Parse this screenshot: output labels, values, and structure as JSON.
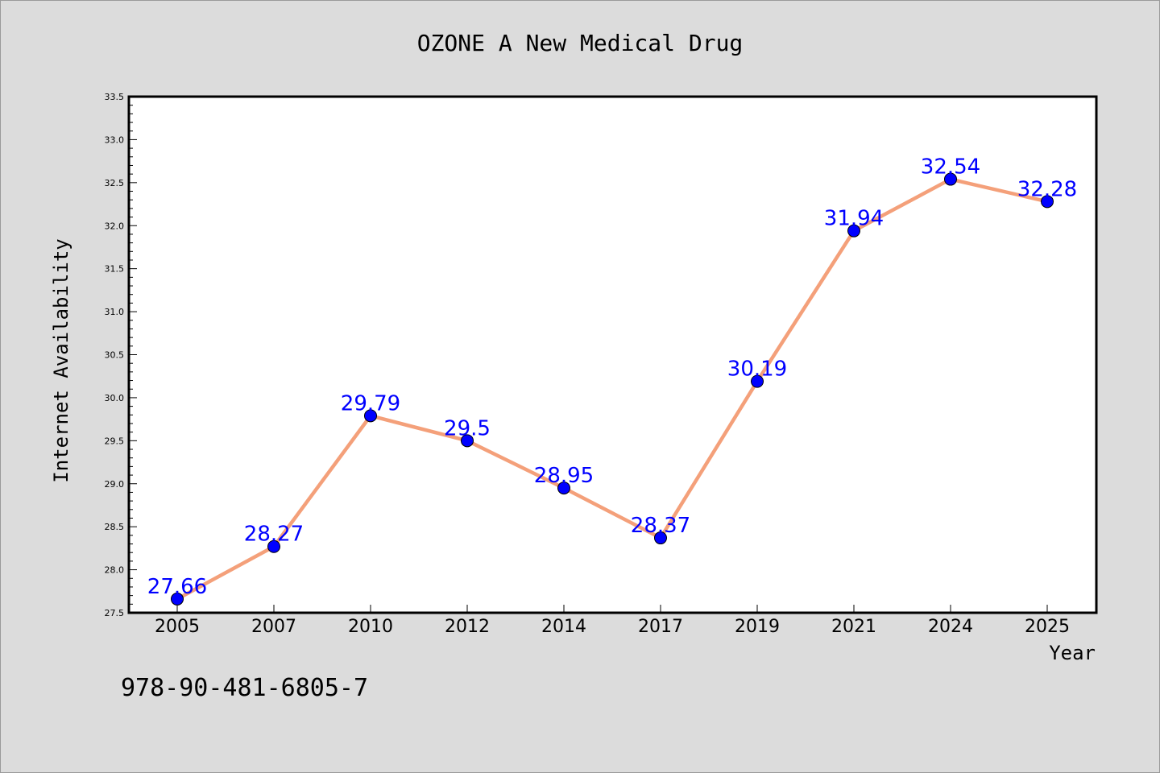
{
  "footer": {
    "isbn": "978-90-481-6805-7"
  },
  "colors": {
    "background": "#dcdcdc",
    "plot_background": "#ffffff",
    "line": "#f4a07a",
    "marker": "#0000ff",
    "data_label": "#0000ff"
  },
  "chart_data": {
    "type": "line",
    "title": "OZONE A New Medical Drug",
    "xlabel": "Year",
    "ylabel": "Internet Availability",
    "categories": [
      "2005",
      "2007",
      "2010",
      "2012",
      "2014",
      "2017",
      "2019",
      "2021",
      "2024",
      "2025"
    ],
    "series": [
      {
        "values": [
          27.66,
          28.27,
          29.79,
          29.5,
          28.95,
          28.37,
          30.19,
          31.94,
          32.54,
          32.28
        ]
      }
    ],
    "data_labels": [
      "27.66",
      "28.27",
      "29.79",
      "29.5",
      "28.95",
      "28.37",
      "30.19",
      "31.94",
      "32.54",
      "32.28"
    ],
    "ylim": [
      27.5,
      33.5
    ],
    "y_ticks": [
      "27.5",
      "28.0",
      "28.5",
      "29.0",
      "29.5",
      "30.0",
      "30.5",
      "31.0",
      "31.5",
      "32.0",
      "32.5",
      "33.0",
      "33.5"
    ],
    "grid": false,
    "legend": "none"
  }
}
